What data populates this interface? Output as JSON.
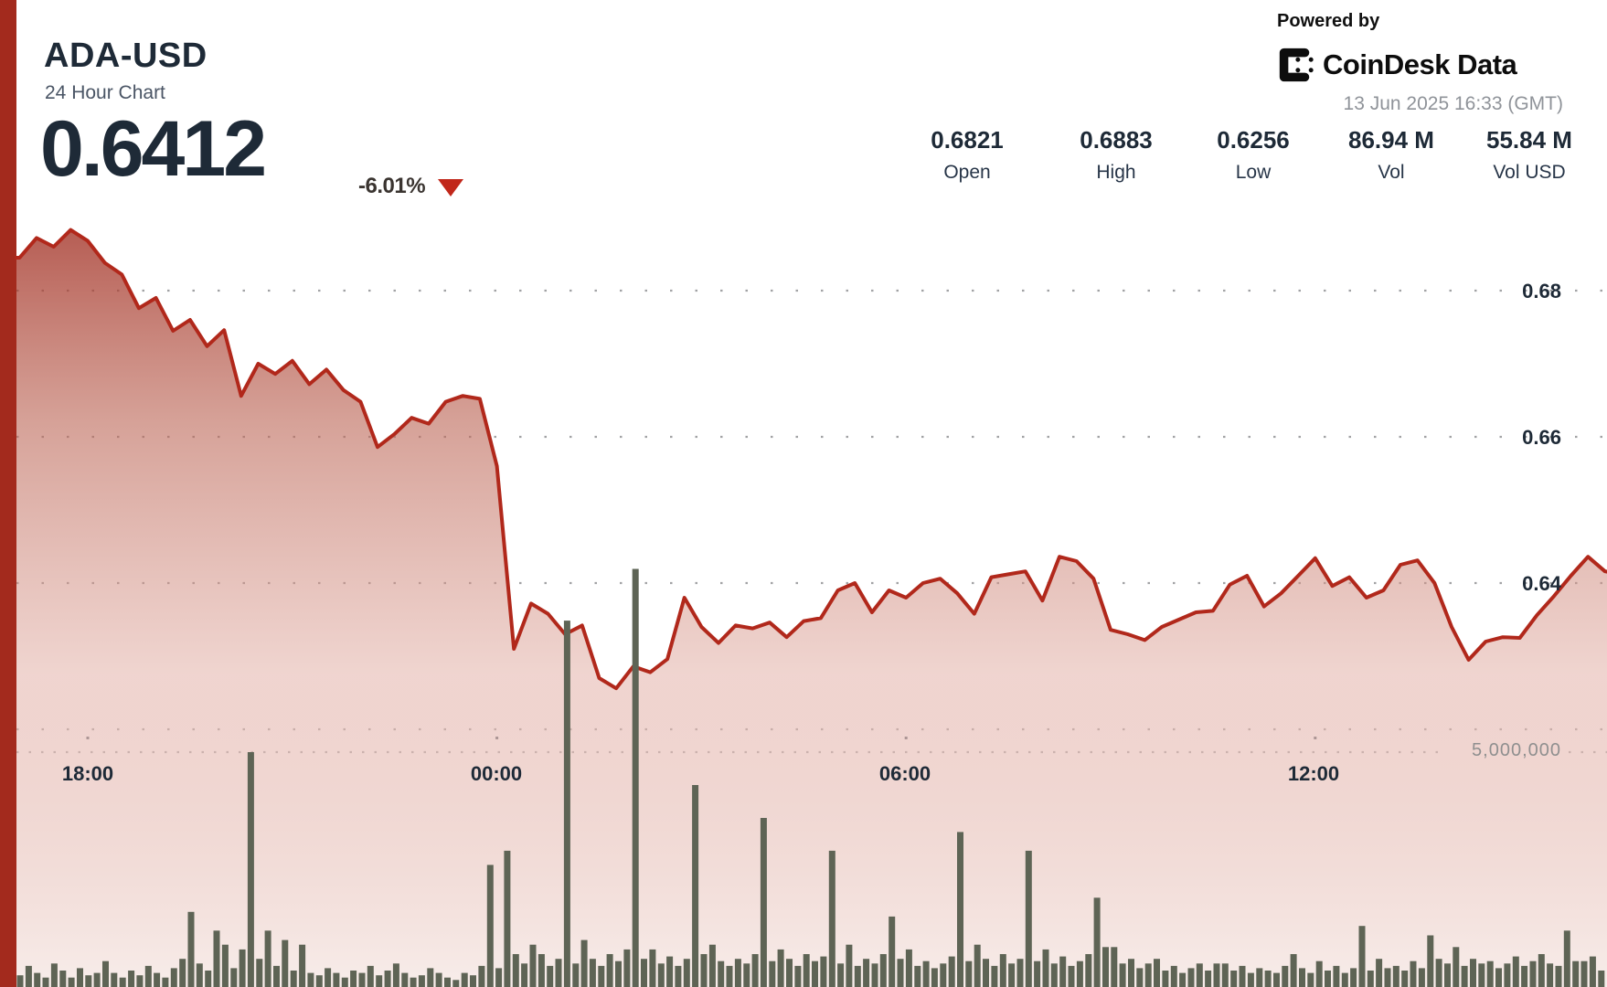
{
  "header": {
    "symbol": "ADA-USD",
    "subtitle": "24 Hour Chart",
    "price": "0.6412",
    "change": "-6.01%",
    "change_direction": "down"
  },
  "attribution": {
    "powered_by": "Powered by",
    "brand": "CoinDesk Data",
    "timestamp": "13 Jun 2025 16:33 (GMT)"
  },
  "stats": [
    {
      "value": "0.6821",
      "label": "Open"
    },
    {
      "value": "0.6883",
      "label": "High"
    },
    {
      "value": "0.6256",
      "label": "Low"
    },
    {
      "value": "86.94 M",
      "label": "Vol"
    },
    {
      "value": "55.84 M",
      "label": "Vol USD"
    }
  ],
  "chart_data": {
    "type": "area",
    "title": "ADA-USD 24 Hour Chart",
    "x_start": "17:00",
    "x_interval_minutes": 15,
    "x_tick_labels": [
      "18:00",
      "00:00",
      "06:00",
      "12:00"
    ],
    "x_tick_indices": [
      4,
      28,
      52,
      76
    ],
    "y_axis_price": {
      "tick_labels": [
        "0.68",
        "0.66",
        "0.64"
      ],
      "ticks": [
        0.68,
        0.66,
        0.64
      ],
      "extra_gridline": 0.62,
      "ylim": [
        0.585,
        0.6935
      ]
    },
    "y_axis_volume": {
      "gridline": 5000000,
      "gridline_label": "5,000,000"
    },
    "price_series": [
      0.6845,
      0.6872,
      0.686,
      0.6883,
      0.6868,
      0.6838,
      0.6822,
      0.6776,
      0.679,
      0.6745,
      0.676,
      0.6724,
      0.6746,
      0.6656,
      0.67,
      0.6686,
      0.6704,
      0.6672,
      0.6692,
      0.6664,
      0.6648,
      0.6586,
      0.6604,
      0.6626,
      0.6618,
      0.6648,
      0.6656,
      0.6652,
      0.656,
      0.631,
      0.6372,
      0.6358,
      0.633,
      0.6342,
      0.627,
      0.6256,
      0.6286,
      0.6278,
      0.6296,
      0.638,
      0.634,
      0.6318,
      0.6342,
      0.6338,
      0.6346,
      0.6326,
      0.6348,
      0.6352,
      0.639,
      0.64,
      0.636,
      0.639,
      0.638,
      0.64,
      0.6406,
      0.6386,
      0.6358,
      0.6408,
      0.6412,
      0.6416,
      0.6376,
      0.6436,
      0.643,
      0.6406,
      0.6336,
      0.633,
      0.6322,
      0.634,
      0.635,
      0.636,
      0.6362,
      0.6398,
      0.641,
      0.6368,
      0.6386,
      0.641,
      0.6434,
      0.6396,
      0.6408,
      0.638,
      0.639,
      0.6425,
      0.6431,
      0.64,
      0.634,
      0.6295,
      0.632,
      0.6326,
      0.6325,
      0.6356,
      0.6382,
      0.641,
      0.6436,
      0.6416,
      0.6412
    ],
    "volume_interval_minutes": 7.5,
    "volume_series_millions": [
      0.25,
      0.45,
      0.3,
      0.2,
      0.5,
      0.35,
      0.2,
      0.4,
      0.25,
      0.3,
      0.55,
      0.3,
      0.2,
      0.35,
      0.25,
      0.45,
      0.3,
      0.2,
      0.4,
      0.6,
      1.6,
      0.5,
      0.35,
      1.2,
      0.9,
      0.4,
      0.8,
      5.0,
      0.6,
      1.2,
      0.45,
      1.0,
      0.35,
      0.9,
      0.3,
      0.25,
      0.4,
      0.3,
      0.2,
      0.35,
      0.3,
      0.45,
      0.25,
      0.35,
      0.5,
      0.3,
      0.2,
      0.25,
      0.4,
      0.3,
      0.2,
      0.15,
      0.3,
      0.25,
      0.45,
      2.6,
      0.4,
      2.9,
      0.7,
      0.5,
      0.9,
      0.7,
      0.45,
      0.6,
      7.8,
      0.5,
      1.0,
      0.6,
      0.45,
      0.7,
      0.55,
      0.8,
      8.9,
      0.6,
      0.8,
      0.5,
      0.65,
      0.45,
      0.6,
      4.3,
      0.7,
      0.9,
      0.55,
      0.45,
      0.6,
      0.5,
      0.7,
      3.6,
      0.55,
      0.8,
      0.6,
      0.45,
      0.7,
      0.55,
      0.65,
      2.9,
      0.5,
      0.9,
      0.45,
      0.6,
      0.5,
      0.7,
      1.5,
      0.6,
      0.8,
      0.45,
      0.55,
      0.4,
      0.5,
      0.65,
      3.3,
      0.55,
      0.9,
      0.6,
      0.45,
      0.7,
      0.5,
      0.6,
      2.9,
      0.55,
      0.8,
      0.5,
      0.65,
      0.45,
      0.55,
      0.7,
      1.9,
      0.85,
      0.85,
      0.5,
      0.6,
      0.4,
      0.5,
      0.6,
      0.35,
      0.45,
      0.3,
      0.4,
      0.5,
      0.35,
      0.5,
      0.5,
      0.35,
      0.45,
      0.3,
      0.4,
      0.35,
      0.3,
      0.45,
      0.7,
      0.4,
      0.3,
      0.55,
      0.35,
      0.45,
      0.3,
      0.4,
      1.3,
      0.35,
      0.6,
      0.4,
      0.45,
      0.35,
      0.55,
      0.4,
      1.1,
      0.6,
      0.5,
      0.85,
      0.45,
      0.6,
      0.5,
      0.55,
      0.4,
      0.5,
      0.65,
      0.45,
      0.55,
      0.7,
      0.5,
      0.45,
      1.2,
      0.55,
      0.55,
      0.65,
      0.35
    ],
    "colors": {
      "line": "#b1281b",
      "area_top": "#9e281c",
      "area_bottom": "#f7ece9",
      "volume_bar": "#5e6455",
      "accent_bar": "#a32a1d",
      "gridline": "#97999b",
      "negative_triangle": "#c1271a"
    }
  }
}
